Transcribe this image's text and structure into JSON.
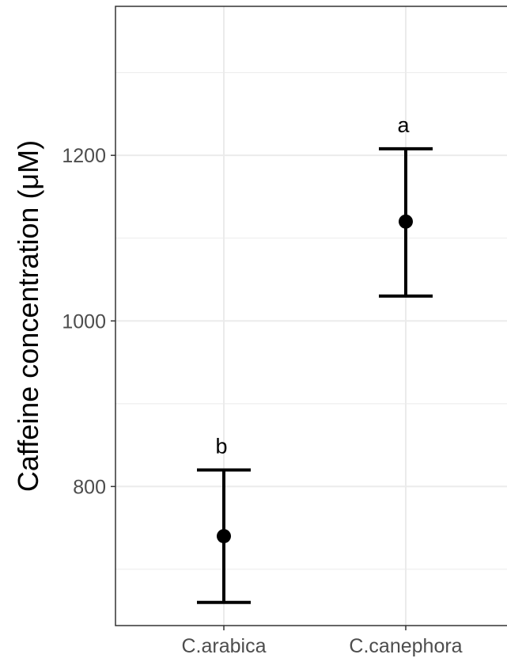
{
  "chart_data": {
    "type": "scatter",
    "title": "",
    "xlabel": "",
    "ylabel": "Caffeine concentration (μM)",
    "categories": [
      "C.arabica",
      "C.canephora"
    ],
    "series": [
      {
        "points": [
          {
            "category": "C.arabica",
            "mean": 740,
            "lower": 660,
            "upper": 820,
            "label": "b"
          },
          {
            "category": "C.canephora",
            "mean": 1120,
            "lower": 1030,
            "upper": 1208,
            "label": "a"
          }
        ]
      }
    ],
    "ylim": [
      632,
      1380
    ],
    "yticks": [
      800,
      1000,
      1200
    ],
    "yticks_labels": [
      "800",
      "1000",
      "1200"
    ],
    "grid": true,
    "colors": {
      "marks": "#000000",
      "grid": "#ebebeb",
      "panel_border": "#333333",
      "tick_text": "#4d4d4d"
    }
  }
}
